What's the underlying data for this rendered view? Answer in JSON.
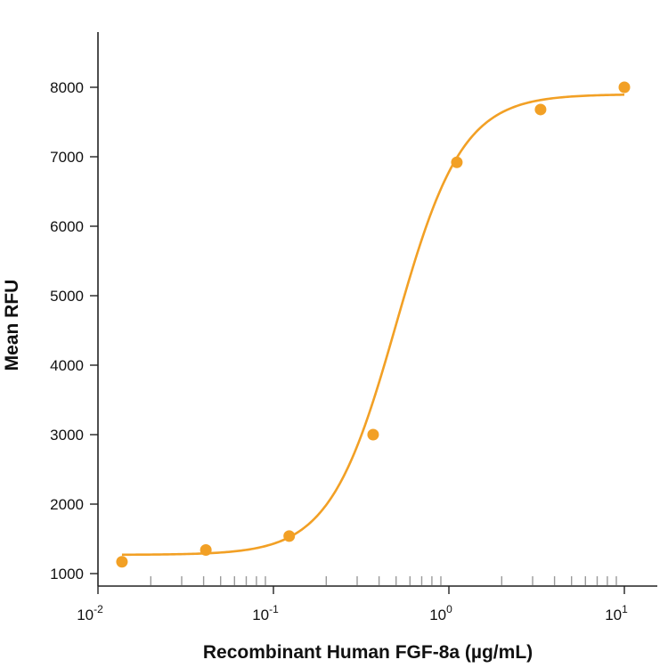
{
  "chart_data": {
    "type": "scatter",
    "title": "",
    "xlabel": "Recombinant Human FGF-8a (µg/mL)",
    "ylabel": "Mean RFU",
    "x_scale": "log",
    "xlim": [
      0.01,
      15
    ],
    "ylim": [
      830,
      8800
    ],
    "grid": false,
    "legend": "none",
    "color": "#F2A025",
    "x_ticks": [
      {
        "value": 0.01,
        "base": "10",
        "exp": "-2"
      },
      {
        "value": 0.1,
        "base": "10",
        "exp": "-1"
      },
      {
        "value": 1,
        "base": "10",
        "exp": "0"
      },
      {
        "value": 10,
        "base": "10",
        "exp": "1"
      }
    ],
    "y_ticks": [
      {
        "value": 1000,
        "label": "1000"
      },
      {
        "value": 2000,
        "label": "2000"
      },
      {
        "value": 3000,
        "label": "3000"
      },
      {
        "value": 4000,
        "label": "4000"
      },
      {
        "value": 5000,
        "label": "5000"
      },
      {
        "value": 6000,
        "label": "6000"
      },
      {
        "value": 7000,
        "label": "7000"
      },
      {
        "value": 8000,
        "label": "8000"
      }
    ],
    "series": [
      {
        "points": [
          {
            "x": 0.0137,
            "y": 1170
          },
          {
            "x": 0.0412,
            "y": 1340
          },
          {
            "x": 0.123,
            "y": 1540
          },
          {
            "x": 0.37,
            "y": 3000
          },
          {
            "x": 1.11,
            "y": 6920
          },
          {
            "x": 3.33,
            "y": 7680
          },
          {
            "x": 10,
            "y": 8000
          }
        ],
        "fit": {
          "bottom": 1270,
          "top": 7900,
          "ec50": 0.5,
          "hill": 2.3,
          "x_range": [
            0.0137,
            10
          ]
        }
      }
    ]
  }
}
